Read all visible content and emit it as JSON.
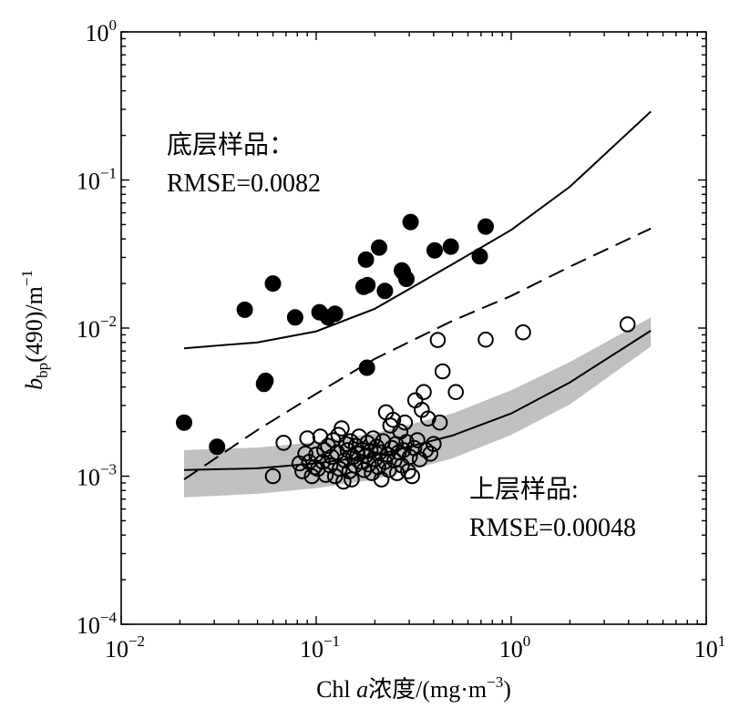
{
  "chart_data": {
    "type": "scatter",
    "x_scale": "log",
    "y_scale": "log",
    "xlim": [
      0.01,
      10
    ],
    "ylim": [
      0.0001,
      1
    ],
    "x_ticks": [
      {
        "base": "10",
        "exp": "−2"
      },
      {
        "base": "10",
        "exp": "−1"
      },
      {
        "base": "10",
        "exp": "0"
      },
      {
        "base": "10",
        "exp": "1"
      }
    ],
    "y_ticks": [
      {
        "base": "10",
        "exp": "−4"
      },
      {
        "base": "10",
        "exp": "−3"
      },
      {
        "base": "10",
        "exp": "−2"
      },
      {
        "base": "10",
        "exp": "−1"
      },
      {
        "base": "10",
        "exp": "0"
      }
    ],
    "xlabel": {
      "prefix": "Chl ",
      "italic": "a",
      "suffix": "浓度/(mg·m",
      "sup": "−3",
      "close": ")"
    },
    "ylabel": {
      "italic": "b",
      "sub": "bp",
      "main": "(490)/m",
      "sup": "−1"
    },
    "annotations": {
      "bottom_layer": {
        "title": "底层样品：",
        "rmse": "RMSE=0.0082"
      },
      "surface_layer": {
        "title": "上层样品:",
        "rmse": "RMSE=0.00048"
      }
    },
    "series": [
      {
        "marker": "filled-circle",
        "points": [
          [
            0.021,
            0.0023
          ],
          [
            0.031,
            0.00158
          ],
          [
            0.043,
            0.0133
          ],
          [
            0.054,
            0.0042
          ],
          [
            0.055,
            0.0044
          ],
          [
            0.06,
            0.02
          ],
          [
            0.078,
            0.0118
          ],
          [
            0.104,
            0.0128
          ],
          [
            0.115,
            0.0118
          ],
          [
            0.125,
            0.0125
          ],
          [
            0.175,
            0.019
          ],
          [
            0.18,
            0.029
          ],
          [
            0.182,
            0.0054
          ],
          [
            0.183,
            0.0195
          ],
          [
            0.21,
            0.035
          ],
          [
            0.225,
            0.0178
          ],
          [
            0.275,
            0.0245
          ],
          [
            0.29,
            0.0215
          ],
          [
            0.305,
            0.052
          ],
          [
            0.405,
            0.0335
          ],
          [
            0.49,
            0.0355
          ],
          [
            0.69,
            0.0305
          ],
          [
            0.74,
            0.0485
          ],
          [
            0.278,
            0.024
          ]
        ]
      },
      {
        "marker": "open-circle",
        "points": [
          [
            0.06,
            0.001
          ],
          [
            0.068,
            0.00168
          ],
          [
            0.082,
            0.00122
          ],
          [
            0.085,
            0.00108
          ],
          [
            0.088,
            0.00142
          ],
          [
            0.09,
            0.0018
          ],
          [
            0.092,
            0.00125
          ],
          [
            0.095,
            0.001
          ],
          [
            0.098,
            0.00115
          ],
          [
            0.1,
            0.0014
          ],
          [
            0.102,
            0.00112
          ],
          [
            0.105,
            0.00185
          ],
          [
            0.108,
            0.00125
          ],
          [
            0.11,
            0.0015
          ],
          [
            0.112,
            0.00102
          ],
          [
            0.115,
            0.0016
          ],
          [
            0.118,
            0.00118
          ],
          [
            0.12,
            0.00135
          ],
          [
            0.122,
            0.00175
          ],
          [
            0.125,
            0.001
          ],
          [
            0.128,
            0.00145
          ],
          [
            0.13,
            0.0019
          ],
          [
            0.132,
            0.00112
          ],
          [
            0.135,
            0.0021
          ],
          [
            0.138,
            0.00092
          ],
          [
            0.14,
            0.00128
          ],
          [
            0.142,
            0.00165
          ],
          [
            0.145,
            0.0015
          ],
          [
            0.148,
            0.00108
          ],
          [
            0.15,
            0.00172
          ],
          [
            0.152,
            0.00095
          ],
          [
            0.155,
            0.00135
          ],
          [
            0.158,
            0.00118
          ],
          [
            0.16,
            0.0016
          ],
          [
            0.163,
            0.00142
          ],
          [
            0.166,
            0.00185
          ],
          [
            0.17,
            0.00125
          ],
          [
            0.173,
            0.0015
          ],
          [
            0.176,
            0.0011
          ],
          [
            0.18,
            0.00138
          ],
          [
            0.183,
            0.00168
          ],
          [
            0.186,
            0.0012
          ],
          [
            0.19,
            0.00148
          ],
          [
            0.193,
            0.00105
          ],
          [
            0.196,
            0.0018
          ],
          [
            0.2,
            0.0013
          ],
          [
            0.204,
            0.00158
          ],
          [
            0.208,
            0.00115
          ],
          [
            0.212,
            0.00145
          ],
          [
            0.216,
            0.00095
          ],
          [
            0.22,
            0.00172
          ],
          [
            0.225,
            0.00125
          ],
          [
            0.228,
            0.0027
          ],
          [
            0.232,
            0.0014
          ],
          [
            0.236,
            0.0011
          ],
          [
            0.24,
            0.0022
          ],
          [
            0.244,
            0.00155
          ],
          [
            0.248,
            0.0024
          ],
          [
            0.252,
            0.00128
          ],
          [
            0.256,
            0.00165
          ],
          [
            0.26,
            0.00105
          ],
          [
            0.265,
            0.00145
          ],
          [
            0.27,
            0.002
          ],
          [
            0.275,
            0.00118
          ],
          [
            0.28,
            0.0015
          ],
          [
            0.285,
            0.0023
          ],
          [
            0.29,
            0.0017
          ],
          [
            0.296,
            0.00108
          ],
          [
            0.302,
            0.00135
          ],
          [
            0.31,
            0.001
          ],
          [
            0.318,
            0.00155
          ],
          [
            0.322,
            0.00325
          ],
          [
            0.33,
            0.00175
          ],
          [
            0.34,
            0.0013
          ],
          [
            0.348,
            0.0028
          ],
          [
            0.356,
            0.0037
          ],
          [
            0.365,
            0.0015
          ],
          [
            0.375,
            0.00245
          ],
          [
            0.385,
            0.00142
          ],
          [
            0.4,
            0.00165
          ],
          [
            0.42,
            0.0083
          ],
          [
            0.43,
            0.0023
          ],
          [
            0.445,
            0.0051
          ],
          [
            0.52,
            0.0037
          ],
          [
            0.74,
            0.00835
          ],
          [
            1.15,
            0.00935
          ],
          [
            3.95,
            0.0106
          ]
        ]
      }
    ],
    "lines": [
      {
        "style": "solid",
        "points": [
          [
            0.021,
            0.0073
          ],
          [
            0.05,
            0.008
          ],
          [
            0.1,
            0.0095
          ],
          [
            0.2,
            0.0135
          ],
          [
            0.5,
            0.027
          ],
          [
            1,
            0.046
          ],
          [
            2,
            0.09
          ],
          [
            5.2,
            0.29
          ]
        ]
      },
      {
        "style": "dashed",
        "points": [
          [
            0.021,
            0.00095
          ],
          [
            0.05,
            0.00205
          ],
          [
            0.1,
            0.0036
          ],
          [
            0.2,
            0.0062
          ],
          [
            0.5,
            0.0112
          ],
          [
            1,
            0.0165
          ],
          [
            2,
            0.026
          ],
          [
            5.2,
            0.047
          ]
        ]
      },
      {
        "style": "solid",
        "points": [
          [
            0.021,
            0.0011
          ],
          [
            0.05,
            0.00113
          ],
          [
            0.1,
            0.00122
          ],
          [
            0.2,
            0.00138
          ],
          [
            0.5,
            0.00188
          ],
          [
            1,
            0.00265
          ],
          [
            2,
            0.0043
          ],
          [
            5.2,
            0.0096
          ]
        ]
      }
    ],
    "band": {
      "color": "#c0c0c0",
      "upper": [
        [
          0.021,
          0.0015
        ],
        [
          0.05,
          0.00156
        ],
        [
          0.1,
          0.0017
        ],
        [
          0.2,
          0.00195
        ],
        [
          0.5,
          0.00265
        ],
        [
          1,
          0.0038
        ],
        [
          2,
          0.0059
        ],
        [
          5.2,
          0.0118
        ]
      ],
      "lower": [
        [
          0.021,
          0.00072
        ],
        [
          0.05,
          0.00076
        ],
        [
          0.1,
          0.00083
        ],
        [
          0.2,
          0.00095
        ],
        [
          0.5,
          0.00132
        ],
        [
          1,
          0.0019
        ],
        [
          2,
          0.00305
        ],
        [
          5.2,
          0.0075
        ]
      ]
    }
  }
}
